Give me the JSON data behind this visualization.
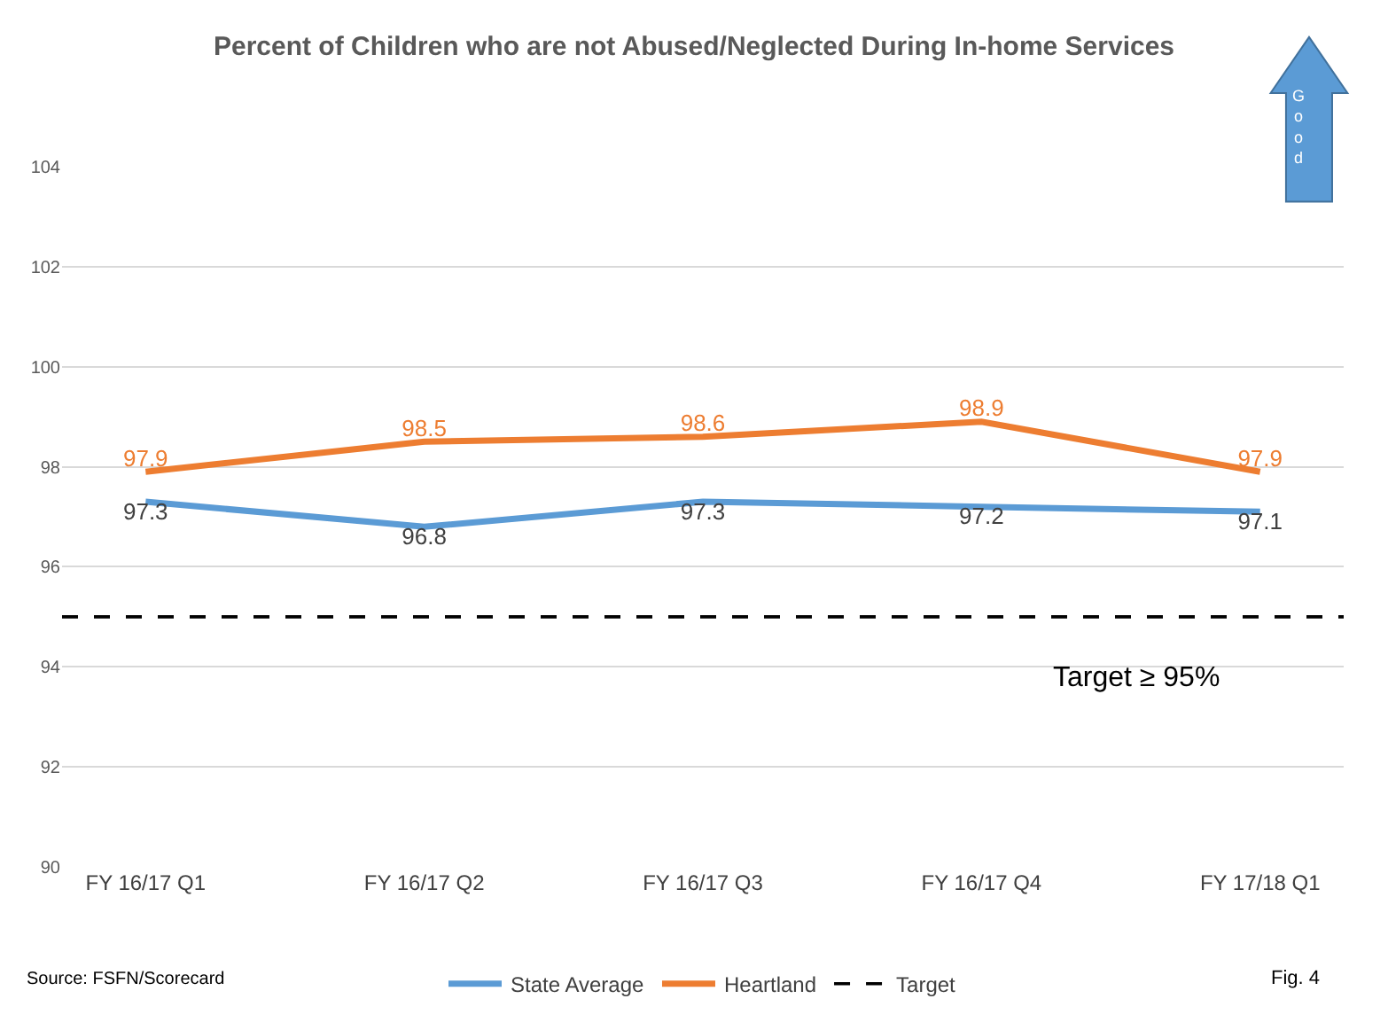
{
  "chart_data": {
    "type": "line",
    "title": "Percent of Children who are not Abused/Neglected During In-home Services",
    "categories": [
      "FY 16/17 Q1",
      "FY 16/17 Q2",
      "FY 16/17 Q3",
      "FY 16/17 Q4",
      "FY 17/18 Q1"
    ],
    "series": [
      {
        "name": "State Average",
        "color": "#5b9bd5",
        "values": [
          97.3,
          96.8,
          97.3,
          97.2,
          97.1
        ],
        "value_labels": [
          "97.3",
          "96.8",
          "97.3",
          "97.2",
          "97.1"
        ]
      },
      {
        "name": "Heartland",
        "color": "#ed7d31",
        "values": [
          97.9,
          98.5,
          98.6,
          98.9,
          97.9
        ],
        "value_labels": [
          "97.9",
          "98.5",
          "98.6",
          "98.9",
          "97.9"
        ]
      }
    ],
    "ref_lines": [
      {
        "axis": "y",
        "value": 95,
        "label": "Target",
        "color": "#000000",
        "line_style": "dashed"
      }
    ],
    "ylim": [
      90,
      104
    ],
    "yticks": [
      90,
      92,
      94,
      96,
      98,
      100,
      102,
      104
    ],
    "grid": "y",
    "legend": "bottom",
    "marker": "none",
    "line_style": "solid",
    "annotations": [
      "Target ≥ 95%",
      "Source: FSFN/Scorecard",
      "Fig. 4",
      "Good"
    ]
  }
}
